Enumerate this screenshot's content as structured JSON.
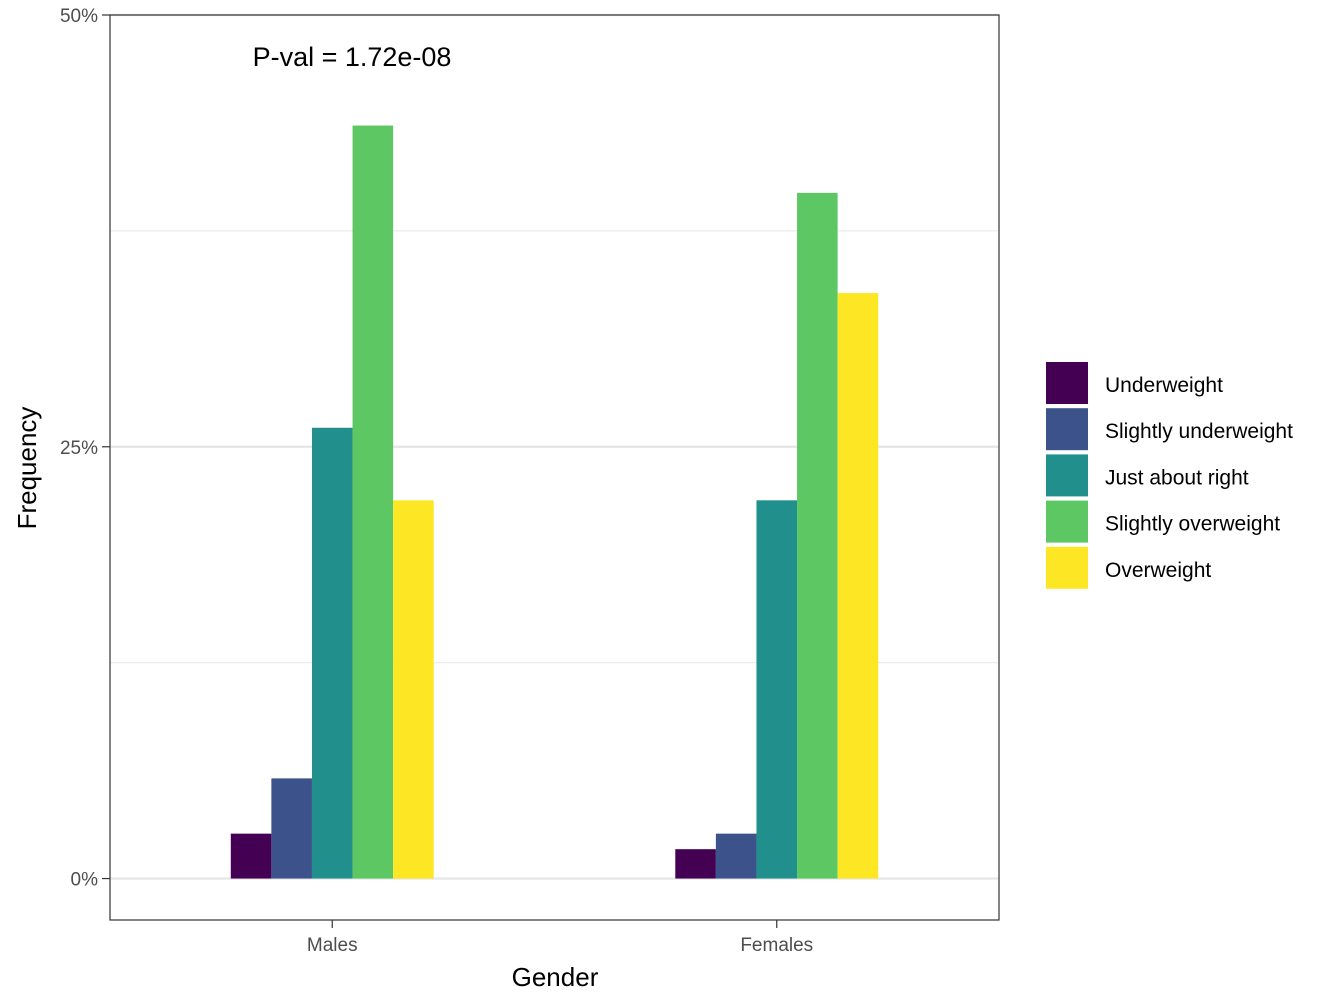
{
  "chart_data": {
    "type": "bar",
    "title": "",
    "xlabel": "Gender",
    "ylabel": "Frequency",
    "categories": [
      "Males",
      "Females"
    ],
    "series": [
      {
        "name": "Underweight",
        "color": "#440154",
        "values": [
          2.6,
          1.7
        ]
      },
      {
        "name": "Slightly underweight",
        "color": "#3B528B",
        "values": [
          5.8,
          2.6
        ]
      },
      {
        "name": "Just about right",
        "color": "#21908C",
        "values": [
          26.1,
          21.9
        ]
      },
      {
        "name": "Slightly overweight",
        "color": "#5DC863",
        "values": [
          43.6,
          39.7
        ]
      },
      {
        "name": "Overweight",
        "color": "#FDE725",
        "values": [
          21.9,
          33.9
        ]
      }
    ],
    "ylim": [
      -2.4,
      50
    ],
    "yticks": [
      0,
      25,
      50
    ],
    "ytick_labels": [
      "0%",
      "25%",
      "50%"
    ],
    "grid": true,
    "legend_position": "right",
    "annotation": "P-val = 1.72e-08"
  }
}
